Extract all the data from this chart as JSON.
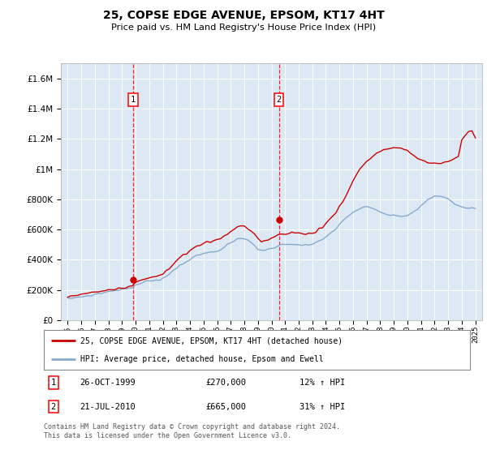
{
  "title": "25, COPSE EDGE AVENUE, EPSOM, KT17 4HT",
  "subtitle": "Price paid vs. HM Land Registry's House Price Index (HPI)",
  "legend_line1": "25, COPSE EDGE AVENUE, EPSOM, KT17 4HT (detached house)",
  "legend_line2": "HPI: Average price, detached house, Epsom and Ewell",
  "annotation1_label": "1",
  "annotation1_date": "26-OCT-1999",
  "annotation1_price": "£270,000",
  "annotation1_hpi": "12% ↑ HPI",
  "annotation2_label": "2",
  "annotation2_date": "21-JUL-2010",
  "annotation2_price": "£665,000",
  "annotation2_hpi": "31% ↑ HPI",
  "footnote1": "Contains HM Land Registry data © Crown copyright and database right 2024.",
  "footnote2": "This data is licensed under the Open Government Licence v3.0.",
  "line1_color": "#cc0000",
  "line2_color": "#88aacc",
  "plot_bg_color": "#dce9f5",
  "grid_color": "#ffffff",
  "purchase1_x": 1999.82,
  "purchase1_y": 270000,
  "purchase2_x": 2010.55,
  "purchase2_y": 665000,
  "ylim": [
    0,
    1700000
  ],
  "xlim": [
    1994.5,
    2025.5
  ],
  "years_hpi": [
    1995.0,
    1995.25,
    1995.5,
    1995.75,
    1996.0,
    1996.25,
    1996.5,
    1996.75,
    1997.0,
    1997.25,
    1997.5,
    1997.75,
    1998.0,
    1998.25,
    1998.5,
    1998.75,
    1999.0,
    1999.25,
    1999.5,
    1999.75,
    2000.0,
    2000.25,
    2000.5,
    2000.75,
    2001.0,
    2001.25,
    2001.5,
    2001.75,
    2002.0,
    2002.25,
    2002.5,
    2002.75,
    2003.0,
    2003.25,
    2003.5,
    2003.75,
    2004.0,
    2004.25,
    2004.5,
    2004.75,
    2005.0,
    2005.25,
    2005.5,
    2005.75,
    2006.0,
    2006.25,
    2006.5,
    2006.75,
    2007.0,
    2007.25,
    2007.5,
    2007.75,
    2008.0,
    2008.25,
    2008.5,
    2008.75,
    2009.0,
    2009.25,
    2009.5,
    2009.75,
    2010.0,
    2010.25,
    2010.5,
    2010.75,
    2011.0,
    2011.25,
    2011.5,
    2011.75,
    2012.0,
    2012.25,
    2012.5,
    2012.75,
    2013.0,
    2013.25,
    2013.5,
    2013.75,
    2014.0,
    2014.25,
    2014.5,
    2014.75,
    2015.0,
    2015.25,
    2015.5,
    2015.75,
    2016.0,
    2016.25,
    2016.5,
    2016.75,
    2017.0,
    2017.25,
    2017.5,
    2017.75,
    2018.0,
    2018.25,
    2018.5,
    2018.75,
    2019.0,
    2019.25,
    2019.5,
    2019.75,
    2020.0,
    2020.25,
    2020.5,
    2020.75,
    2021.0,
    2021.25,
    2021.5,
    2021.75,
    2022.0,
    2022.25,
    2022.5,
    2022.75,
    2023.0,
    2023.25,
    2023.5,
    2023.75,
    2024.0,
    2024.25,
    2024.5,
    2024.75,
    2025.0
  ],
  "hpi_values": [
    142000,
    145000,
    148000,
    151000,
    155000,
    158000,
    161000,
    165000,
    169000,
    174000,
    179000,
    184000,
    189000,
    193000,
    197000,
    201000,
    204000,
    207000,
    211000,
    218000,
    228000,
    238000,
    248000,
    255000,
    260000,
    264000,
    267000,
    269000,
    275000,
    290000,
    308000,
    326000,
    346000,
    363000,
    378000,
    390000,
    402000,
    414000,
    425000,
    433000,
    440000,
    446000,
    450000,
    454000,
    460000,
    470000,
    480000,
    496000,
    512000,
    525000,
    535000,
    540000,
    538000,
    530000,
    515000,
    495000,
    472000,
    462000,
    462000,
    468000,
    476000,
    484000,
    492000,
    498000,
    502000,
    504000,
    505000,
    503000,
    500000,
    498000,
    497000,
    498000,
    502000,
    510000,
    521000,
    534000,
    550000,
    568000,
    588000,
    609000,
    632000,
    656000,
    678000,
    698000,
    715000,
    728000,
    738000,
    745000,
    748000,
    744000,
    736000,
    726000,
    716000,
    708000,
    700000,
    694000,
    690000,
    688000,
    688000,
    690000,
    695000,
    705000,
    720000,
    738000,
    758000,
    778000,
    795000,
    808000,
    818000,
    822000,
    820000,
    812000,
    800000,
    785000,
    770000,
    758000,
    750000,
    745000,
    742000,
    740000,
    740000
  ],
  "red_values": [
    155000,
    158000,
    161000,
    164000,
    169000,
    173000,
    177000,
    181000,
    185000,
    189000,
    193000,
    197000,
    201000,
    205000,
    209000,
    213000,
    216000,
    219000,
    222000,
    230000,
    248000,
    262000,
    272000,
    278000,
    282000,
    287000,
    292000,
    298000,
    310000,
    328000,
    348000,
    368000,
    390000,
    410000,
    428000,
    443000,
    458000,
    472000,
    487000,
    498000,
    507000,
    514000,
    520000,
    525000,
    530000,
    542000,
    555000,
    572000,
    590000,
    605000,
    618000,
    625000,
    620000,
    608000,
    590000,
    567000,
    540000,
    524000,
    524000,
    532000,
    542000,
    552000,
    562000,
    570000,
    575000,
    578000,
    580000,
    578000,
    574000,
    572000,
    570000,
    572000,
    578000,
    588000,
    601000,
    618000,
    638000,
    662000,
    688000,
    718000,
    752000,
    790000,
    832000,
    876000,
    920000,
    962000,
    998000,
    1028000,
    1052000,
    1072000,
    1090000,
    1105000,
    1118000,
    1128000,
    1135000,
    1140000,
    1143000,
    1142000,
    1138000,
    1130000,
    1118000,
    1105000,
    1090000,
    1075000,
    1062000,
    1052000,
    1045000,
    1040000,
    1038000,
    1038000,
    1040000,
    1044000,
    1050000,
    1058000,
    1068000,
    1080000,
    1195000,
    1225000,
    1248000,
    1255000,
    1215000
  ]
}
